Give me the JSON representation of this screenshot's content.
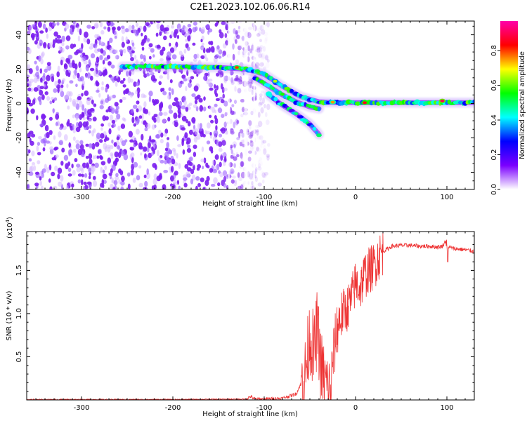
{
  "title": "C2E1.2023.102.06.06.R14",
  "chart_data": [
    {
      "type": "heatmap",
      "xlabel": "Height of straight line (km)",
      "ylabel": "Frequency (Hz)",
      "xlim": [
        -360,
        130
      ],
      "ylim": [
        -50,
        48
      ],
      "xticks": [
        -300,
        -200,
        -100,
        0,
        100
      ],
      "yticks": [
        -40,
        -20,
        0,
        20,
        40
      ],
      "colorbar": {
        "label": "Normalized spectral amplitude",
        "range": [
          0.0,
          0.97
        ],
        "ticks": [
          "0.0",
          "0.2",
          "0.4",
          "0.6",
          "0.8"
        ],
        "tick_values": [
          0.0,
          0.2,
          0.4,
          0.6,
          0.8
        ],
        "colormap": [
          "#ffffff",
          "#7b00ff",
          "#0000ff",
          "#00ffff",
          "#00ff00",
          "#ffff00",
          "#ff0000",
          "#ff00aa"
        ]
      },
      "noise_region": {
        "x_range": [
          -360,
          -95
        ],
        "y_range": [
          -50,
          48
        ],
        "level": 0.12
      },
      "ridges": [
        {
          "name": "",
          "points": [
            [
              -255,
              21.5
            ],
            [
              -200,
              21.5
            ],
            [
              -150,
              21
            ],
            [
              -120,
              20
            ],
            [
              -100,
              17
            ],
            [
              -80,
              10
            ],
            [
              -60,
              4
            ],
            [
              -40,
              1
            ],
            [
              -20,
              0.5
            ],
            [
              0,
              0.5
            ],
            [
              50,
              0.5
            ],
            [
              130,
              0.5
            ]
          ],
          "level": 0.45
        },
        {
          "name": "",
          "points": [
            [
              -110,
              15
            ],
            [
              -95,
              10
            ],
            [
              -80,
              5
            ],
            [
              -65,
              1
            ],
            [
              -50,
              -2
            ],
            [
              -40,
              -3
            ]
          ],
          "level": 0.4
        },
        {
          "name": "",
          "points": [
            [
              -95,
              5
            ],
            [
              -80,
              -1
            ],
            [
              -65,
              -6
            ],
            [
              -50,
              -12
            ],
            [
              -40,
              -18
            ]
          ],
          "level": 0.35
        }
      ],
      "hotspots": [
        {
          "x": -130,
          "y": 21,
          "level": 0.8
        },
        {
          "x": -88,
          "y": 13,
          "level": 0.65
        },
        {
          "x": -25,
          "y": 0.8,
          "level": 0.75
        },
        {
          "x": 10,
          "y": 0.5,
          "level": 0.85
        },
        {
          "x": 95,
          "y": 1.5,
          "level": 0.9
        }
      ]
    },
    {
      "type": "line",
      "xlabel": "Height of straight line (km)",
      "ylabel": "SNR (10 * v/v)",
      "y_multiplier": "(x10⁴)",
      "multiplier_base": "(x10",
      "multiplier_exp": "4",
      "multiplier_close": ")",
      "xlim": [
        -360,
        130
      ],
      "ylim": [
        0,
        1.95
      ],
      "xticks": [
        -300,
        -200,
        -100,
        0,
        100
      ],
      "yticks": [
        0.5,
        1.0,
        1.5
      ],
      "ytick_labels": [
        "0.5",
        "1.0",
        "1.5"
      ],
      "color": "#ee3333",
      "series": [
        {
          "name": "",
          "x": [
            -360,
            -200,
            -120,
            -115,
            -110,
            -100,
            -80,
            -65,
            -55,
            -50,
            -45,
            -42,
            -38,
            -35,
            -30,
            -27,
            -25,
            -23,
            -20,
            -15,
            -10,
            -5,
            0,
            5,
            10,
            15,
            20,
            25,
            30,
            40,
            50,
            60,
            70,
            80,
            90,
            95,
            99,
            101,
            105,
            110,
            120,
            130
          ],
          "y": [
            0.005,
            0.005,
            0.01,
            0.04,
            0.01,
            0.01,
            0.02,
            0.07,
            0.3,
            0.75,
            0.55,
            0.85,
            0.4,
            0.25,
            0.12,
            0.05,
            0.45,
            0.6,
            0.85,
            1.0,
            1.05,
            1.15,
            1.35,
            1.3,
            1.45,
            1.5,
            1.55,
            1.65,
            1.72,
            1.78,
            1.79,
            1.79,
            1.78,
            1.78,
            1.77,
            1.78,
            1.85,
            1.78,
            1.76,
            1.75,
            1.74,
            1.72
          ]
        }
      ]
    }
  ]
}
